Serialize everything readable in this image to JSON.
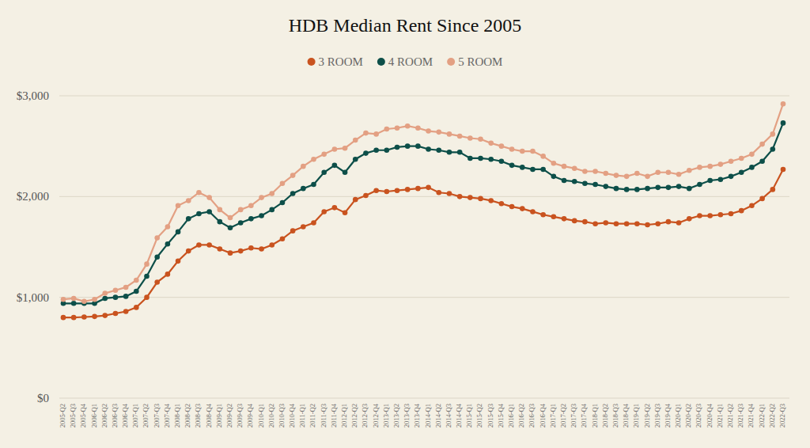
{
  "chart_data": {
    "type": "line",
    "title": "HDB Median Rent Since 2005",
    "categories": [
      "2005-Q2",
      "2005-Q3",
      "2005-Q4",
      "2006-Q1",
      "2006-Q2",
      "2006-Q3",
      "2006-Q4",
      "2007-Q1",
      "2007-Q2",
      "2007-Q3",
      "2007-Q4",
      "2008-Q1",
      "2008-Q2",
      "2008-Q3",
      "2008-Q4",
      "2009-Q1",
      "2009-Q2",
      "2009-Q3",
      "2009-Q4",
      "2010-Q1",
      "2010-Q2",
      "2010-Q3",
      "2010-Q4",
      "2011-Q1",
      "2011-Q2",
      "2011-Q3",
      "2011-Q4",
      "2012-Q1",
      "2012-Q2",
      "2012-Q3",
      "2012-Q4",
      "2013-Q1",
      "2013-Q2",
      "2013-Q3",
      "2013-Q4",
      "2014-Q1",
      "2014-Q2",
      "2014-Q3",
      "2014-Q4",
      "2015-Q1",
      "2015-Q2",
      "2015-Q3",
      "2015-Q4",
      "2016-Q1",
      "2016-Q2",
      "2016-Q3",
      "2016-Q4",
      "2017-Q1",
      "2017-Q2",
      "2017-Q3",
      "2017-Q4",
      "2018-Q1",
      "2018-Q2",
      "2018-Q3",
      "2018-Q4",
      "2019-Q1",
      "2019-Q2",
      "2019-Q3",
      "2019-Q4",
      "2020-Q1",
      "2020-Q2",
      "2020-Q3",
      "2020-Q4",
      "2021-Q1",
      "2021-Q2",
      "2021-Q3",
      "2021-Q4",
      "2022-Q1",
      "2022-Q2",
      "2022-Q3"
    ],
    "series": [
      {
        "name": "3 ROOM",
        "color": "#c9531f",
        "marker": "circle",
        "values": [
          800,
          800,
          805,
          810,
          820,
          840,
          860,
          900,
          1000,
          1150,
          1230,
          1360,
          1460,
          1520,
          1520,
          1480,
          1440,
          1460,
          1490,
          1480,
          1520,
          1580,
          1660,
          1700,
          1740,
          1850,
          1890,
          1840,
          1970,
          2010,
          2060,
          2050,
          2060,
          2070,
          2080,
          2090,
          2040,
          2030,
          2000,
          1990,
          1980,
          1960,
          1930,
          1900,
          1880,
          1850,
          1820,
          1800,
          1780,
          1760,
          1750,
          1730,
          1740,
          1730,
          1730,
          1730,
          1720,
          1730,
          1750,
          1740,
          1780,
          1810,
          1810,
          1820,
          1830,
          1860,
          1910,
          1980,
          2070,
          2270
        ]
      },
      {
        "name": "4 ROOM",
        "color": "#0d4f49",
        "marker": "circle",
        "values": [
          940,
          940,
          940,
          940,
          990,
          1000,
          1010,
          1060,
          1210,
          1400,
          1530,
          1650,
          1780,
          1830,
          1850,
          1750,
          1690,
          1740,
          1780,
          1810,
          1870,
          1940,
          2030,
          2080,
          2120,
          2240,
          2310,
          2240,
          2370,
          2430,
          2460,
          2460,
          2490,
          2500,
          2500,
          2470,
          2460,
          2440,
          2440,
          2380,
          2380,
          2370,
          2350,
          2310,
          2290,
          2270,
          2270,
          2200,
          2160,
          2150,
          2130,
          2120,
          2100,
          2080,
          2070,
          2070,
          2080,
          2090,
          2090,
          2100,
          2080,
          2120,
          2160,
          2170,
          2200,
          2240,
          2290,
          2350,
          2470,
          2730
        ]
      },
      {
        "name": "5 ROOM",
        "color": "#e3a083",
        "marker": "circle",
        "values": [
          980,
          990,
          960,
          980,
          1040,
          1070,
          1100,
          1170,
          1330,
          1590,
          1700,
          1910,
          1960,
          2040,
          1990,
          1870,
          1790,
          1870,
          1910,
          1990,
          2030,
          2130,
          2210,
          2300,
          2370,
          2420,
          2470,
          2480,
          2560,
          2630,
          2620,
          2670,
          2680,
          2700,
          2680,
          2650,
          2640,
          2620,
          2600,
          2580,
          2570,
          2530,
          2500,
          2470,
          2450,
          2450,
          2400,
          2330,
          2300,
          2280,
          2250,
          2250,
          2230,
          2210,
          2200,
          2230,
          2200,
          2240,
          2240,
          2220,
          2260,
          2290,
          2300,
          2320,
          2350,
          2380,
          2420,
          2520,
          2620,
          2920
        ]
      }
    ],
    "ylim": [
      0,
      3000
    ],
    "yticks": [
      {
        "value": 0,
        "label": "$0"
      },
      {
        "value": 1000,
        "label": "$1,000"
      },
      {
        "value": 2000,
        "label": "$2,000"
      },
      {
        "value": 3000,
        "label": "$3,000"
      }
    ],
    "grid": true,
    "legend": "top"
  }
}
